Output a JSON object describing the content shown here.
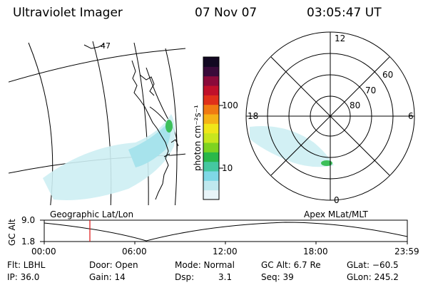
{
  "header": {
    "instrument": "Ultraviolet Imager",
    "date": "07 Nov 07",
    "time": "03:05:47 UT"
  },
  "geo_map": {
    "label": "Geographic Lat/Lon",
    "lat_label": "47"
  },
  "colorbar": {
    "unit_label": "photon cm⁻²s⁻¹",
    "ticks": [
      "100",
      "10"
    ],
    "colors": [
      "#e8f4f8",
      "#bfe8ee",
      "#7fd8e6",
      "#45c8a0",
      "#2ab84a",
      "#7ed321",
      "#c8e61e",
      "#f0e619",
      "#f5b316",
      "#f07a12",
      "#e0301a",
      "#c0102a",
      "#8a0a3a",
      "#3a0a3a",
      "#120822"
    ]
  },
  "polar": {
    "label": "Apex MLat/MLT",
    "mlt_labels": {
      "top": "12",
      "left": "18",
      "right": "6",
      "bottom": "0"
    },
    "lat_labels": [
      "60",
      "70",
      "80"
    ]
  },
  "altitude": {
    "axis_label": "GC Alt",
    "y_ticks": [
      "9.0",
      "1.8"
    ],
    "x_ticks": [
      "00:00",
      "06:00",
      "12:00",
      "18:00",
      "23:59"
    ]
  },
  "footer": {
    "flt": "Flt: LBHL",
    "ip": "IP: 36.0",
    "door": "Door: Open",
    "gain": "Gain: 14",
    "mode": "Mode: Normal",
    "dsp_label": "Dsp:",
    "dsp_value": "3.1",
    "gc_alt": "GC Alt: 6.7 Re",
    "seq": "Seq: 39",
    "glat": "GLat: −60.5",
    "glon": "GLon: 245.2"
  }
}
